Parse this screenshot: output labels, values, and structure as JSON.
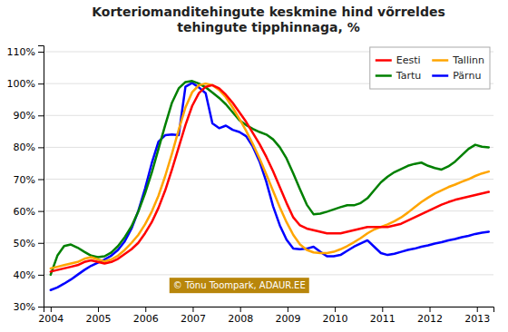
{
  "chart_data": {
    "type": "line",
    "title": "Korteriomanditehingute keskmine hind võrreldes\ntehingute tipphinnaga, %",
    "x": [
      2004,
      2004.1423,
      2004.2846,
      2004.4269,
      2004.5692,
      2004.7115,
      2004.8538,
      2004.9962,
      2005.1385,
      2005.2808,
      2005.4231,
      2005.5654,
      2005.7077,
      2005.85,
      2005.9923,
      2006.1346,
      2006.2769,
      2006.4192,
      2006.5615,
      2006.7038,
      2006.8462,
      2006.9885,
      2007.1308,
      2007.2731,
      2007.4154,
      2007.5577,
      2007.7,
      2007.8423,
      2007.9846,
      2008.1269,
      2008.2692,
      2008.4115,
      2008.5538,
      2008.6962,
      2008.8385,
      2008.9808,
      2009.1231,
      2009.2654,
      2009.4077,
      2009.55,
      2009.6923,
      2009.8346,
      2009.9769,
      2010.1192,
      2010.2615,
      2010.4038,
      2010.5462,
      2010.6885,
      2010.8308,
      2010.9731,
      2011.1154,
      2011.2577,
      2011.4,
      2011.5423,
      2011.6846,
      2011.8269,
      2011.9692,
      2012.1115,
      2012.2538,
      2012.3962,
      2012.5385,
      2012.6808,
      2012.8231,
      2012.9654,
      2013.1077,
      2013.25
    ],
    "xlim": [
      2003.85,
      2013.35
    ],
    "xticks": [
      2004,
      2005,
      2006,
      2007,
      2008,
      2009,
      2010,
      2011,
      2012,
      2013
    ],
    "ylim": [
      0.3,
      1.12
    ],
    "yticks": [
      {
        "value": 0.3,
        "label": "30%"
      },
      {
        "value": 0.4,
        "label": "40%"
      },
      {
        "value": 0.5,
        "label": "50%"
      },
      {
        "value": 0.6,
        "label": "60%"
      },
      {
        "value": 0.7,
        "label": "70%"
      },
      {
        "value": 0.8,
        "label": "80%"
      },
      {
        "value": 0.9,
        "label": "90%"
      },
      {
        "value": 1.0,
        "label": "100%"
      },
      {
        "value": 1.1,
        "label": "110%"
      }
    ],
    "grid": true,
    "legend": "upper right",
    "series": [
      {
        "name": "Eesti",
        "color": "#ff0000",
        "values": [
          0.41,
          0.415,
          0.42,
          0.425,
          0.43,
          0.44,
          0.445,
          0.44,
          0.435,
          0.44,
          0.45,
          0.465,
          0.48,
          0.5,
          0.53,
          0.565,
          0.61,
          0.665,
          0.73,
          0.8,
          0.87,
          0.93,
          0.97,
          0.99,
          0.995,
          0.985,
          0.965,
          0.94,
          0.91,
          0.88,
          0.845,
          0.81,
          0.77,
          0.725,
          0.675,
          0.625,
          0.58,
          0.555,
          0.545,
          0.54,
          0.535,
          0.53,
          0.53,
          0.53,
          0.535,
          0.54,
          0.545,
          0.55,
          0.55,
          0.55,
          0.55,
          0.555,
          0.56,
          0.57,
          0.58,
          0.59,
          0.6,
          0.61,
          0.62,
          0.628,
          0.635,
          0.64,
          0.645,
          0.65,
          0.655,
          0.66
        ]
      },
      {
        "name": "Tallinn",
        "color": "#ffa500",
        "values": [
          0.42,
          0.425,
          0.43,
          0.435,
          0.44,
          0.45,
          0.455,
          0.448,
          0.442,
          0.448,
          0.46,
          0.478,
          0.5,
          0.525,
          0.558,
          0.598,
          0.648,
          0.71,
          0.78,
          0.855,
          0.925,
          0.973,
          0.995,
          1.0,
          0.995,
          0.98,
          0.957,
          0.925,
          0.89,
          0.852,
          0.81,
          0.765,
          0.715,
          0.663,
          0.612,
          0.565,
          0.525,
          0.495,
          0.478,
          0.47,
          0.468,
          0.468,
          0.472,
          0.48,
          0.49,
          0.502,
          0.515,
          0.53,
          0.542,
          0.55,
          0.558,
          0.568,
          0.58,
          0.595,
          0.612,
          0.628,
          0.642,
          0.655,
          0.665,
          0.675,
          0.683,
          0.692,
          0.7,
          0.71,
          0.718,
          0.724
        ]
      },
      {
        "name": "Tartu",
        "color": "#008000",
        "values": [
          0.4,
          0.46,
          0.49,
          0.495,
          0.485,
          0.472,
          0.46,
          0.455,
          0.458,
          0.47,
          0.49,
          0.518,
          0.552,
          0.598,
          0.655,
          0.72,
          0.795,
          0.87,
          0.94,
          0.985,
          1.005,
          1.008,
          1.0,
          0.988,
          0.972,
          0.955,
          0.935,
          0.91,
          0.885,
          0.87,
          0.858,
          0.848,
          0.84,
          0.825,
          0.8,
          0.765,
          0.718,
          0.668,
          0.62,
          0.59,
          0.592,
          0.598,
          0.605,
          0.612,
          0.618,
          0.618,
          0.625,
          0.64,
          0.665,
          0.69,
          0.708,
          0.722,
          0.732,
          0.742,
          0.748,
          0.752,
          0.742,
          0.735,
          0.73,
          0.74,
          0.755,
          0.775,
          0.795,
          0.808,
          0.802,
          0.8
        ]
      },
      {
        "name": "Pärnu",
        "color": "#0000ff",
        "values": [
          0.352,
          0.36,
          0.372,
          0.385,
          0.4,
          0.415,
          0.428,
          0.438,
          0.448,
          0.46,
          0.478,
          0.505,
          0.545,
          0.6,
          0.67,
          0.75,
          0.818,
          0.838,
          0.84,
          0.838,
          0.99,
          1.002,
          0.988,
          0.97,
          0.875,
          0.86,
          0.868,
          0.855,
          0.848,
          0.835,
          0.802,
          0.755,
          0.692,
          0.615,
          0.555,
          0.51,
          0.482,
          0.48,
          0.482,
          0.488,
          0.472,
          0.458,
          0.458,
          0.462,
          0.475,
          0.488,
          0.498,
          0.508,
          0.488,
          0.468,
          0.462,
          0.466,
          0.472,
          0.478,
          0.482,
          0.488,
          0.492,
          0.498,
          0.502,
          0.508,
          0.512,
          0.518,
          0.522,
          0.528,
          0.532,
          0.535
        ]
      }
    ],
    "annotations": [
      {
        "text": "© Tõnu Toompark, ADAUR.EE",
        "color": "#b8860b"
      }
    ]
  }
}
